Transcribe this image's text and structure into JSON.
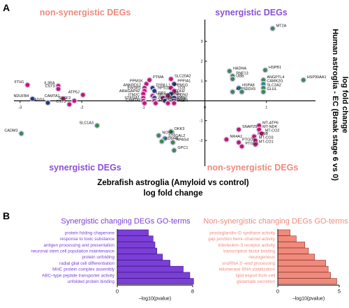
{
  "panel_a": {
    "letter": "A",
    "quadrant_labels": {
      "top_left": "non-synergistic DEGs",
      "top_right": "synergistic DEGs",
      "bottom_left": "synergistic DEGs",
      "bottom_right": "non-synergistic DEGs"
    },
    "colors": {
      "synergistic": "#8a4fd6",
      "non_synergistic": "#ee8a7c"
    }
  },
  "panel_b": {
    "letter": "B",
    "left": {
      "title": "Synergistic changing DEGs GO-terms",
      "xlabel": "–log10(pvalue)",
      "color": "#7b3fd8"
    },
    "right": {
      "title": "Non-synergistic changing DEGs GO-terms",
      "xlabel": "–log10(pvalue)",
      "color": "#f08a7c"
    }
  },
  "chart_data": [
    {
      "type": "scatter",
      "title": "",
      "xlabel": "Zebrafish astroglia (Amyloid vs control)\nlog fold change",
      "ylabel": "Human astroglia - EC (Braak stage 6 vs 0)\nlog fold change",
      "xlim": [
        -3.1,
        2.0
      ],
      "ylim": [
        -3.3,
        4.1
      ],
      "xticks": [
        -3,
        -2,
        -1,
        0,
        1
      ],
      "yticks": [
        -2,
        -1,
        1,
        2,
        3
      ],
      "grid": false,
      "marker_colors": {
        "magenta": "#c2186b",
        "green": "#3c8a4e",
        "teal": "#2b8c8a",
        "navy": "#1f3f73"
      },
      "points": [
        {
          "label": "FTH1",
          "x": -2.88,
          "y": 0.8,
          "color": "magenta"
        },
        {
          "label": "IL3RA",
          "x": -2.38,
          "y": 0.75,
          "color": "magenta"
        },
        {
          "label": "CST3",
          "x": -2.38,
          "y": 0.6,
          "color": "magenta"
        },
        {
          "label": "ATP5J",
          "x": -1.98,
          "y": 0.3,
          "color": "magenta"
        },
        {
          "label": "NDUFB4",
          "x": -2.8,
          "y": 0.1,
          "color": "navy"
        },
        {
          "label": "CAMTA1",
          "x": -2.3,
          "y": 0.1,
          "color": "magenta"
        },
        {
          "label": "SRSF2",
          "x": -2.12,
          "y": 0.0,
          "color": "magenta"
        },
        {
          "label": "ADD3",
          "x": -2.55,
          "y": -0.1,
          "color": "navy"
        },
        {
          "label": "CST3",
          "x": -2.2,
          "y": -0.18,
          "color": "magenta"
        },
        {
          "label": "SLC1A3",
          "x": -1.75,
          "y": -1.25,
          "color": "green"
        },
        {
          "label": "CADM3",
          "x": -2.98,
          "y": -1.65,
          "color": "green"
        },
        {
          "label": "PTMA",
          "x": -0.9,
          "y": 1.05,
          "color": "magenta"
        },
        {
          "label": "SLC20A2",
          "x": -0.55,
          "y": 1.1,
          "color": "magenta"
        },
        {
          "label": "PPM1K",
          "x": -0.95,
          "y": 0.85,
          "color": "magenta"
        },
        {
          "label": "PPFIA1",
          "x": -0.5,
          "y": 0.85,
          "color": "navy"
        },
        {
          "label": "ANKRD12",
          "x": -0.98,
          "y": 0.65,
          "color": "magenta"
        },
        {
          "label": "DYNLL1",
          "x": -0.85,
          "y": 0.65,
          "color": "navy"
        },
        {
          "label": "PPM1G",
          "x": -0.55,
          "y": 0.65,
          "color": "magenta"
        },
        {
          "label": "EWSR1",
          "x": -0.98,
          "y": 0.5,
          "color": "magenta"
        },
        {
          "label": "RPS10",
          "x": -0.82,
          "y": 0.5,
          "color": "navy"
        },
        {
          "label": "TOX",
          "x": -0.5,
          "y": 0.5,
          "color": "magenta"
        },
        {
          "label": "ARHGAP42",
          "x": -1.0,
          "y": 0.35,
          "color": "magenta"
        },
        {
          "label": "CDH2",
          "x": -0.55,
          "y": 0.35,
          "color": "navy"
        },
        {
          "label": "LRP2",
          "x": -0.85,
          "y": 0.25,
          "color": "magenta"
        },
        {
          "label": "AK5",
          "x": -0.6,
          "y": 0.25,
          "color": "magenta"
        },
        {
          "label": "ITM2C",
          "x": -1.0,
          "y": 0.15,
          "color": "magenta"
        },
        {
          "label": "NR2F1",
          "x": -0.82,
          "y": 0.15,
          "color": "navy"
        },
        {
          "label": "POU3F2",
          "x": -0.68,
          "y": 0.15,
          "color": "magenta"
        },
        {
          "label": "PON2",
          "x": -0.5,
          "y": 0.15,
          "color": "navy"
        },
        {
          "label": "ST8SIA1",
          "x": -1.0,
          "y": 0.0,
          "color": "magenta"
        },
        {
          "label": "ZNF638",
          "x": -0.82,
          "y": 0.0,
          "color": "magenta"
        },
        {
          "label": "HSP90B1",
          "x": -0.65,
          "y": 0.0,
          "color": "navy"
        },
        {
          "label": "CCNI",
          "x": -0.5,
          "y": 0.0,
          "color": "magenta"
        },
        {
          "label": "CAMTA1",
          "x": -0.98,
          "y": -0.12,
          "color": "magenta"
        },
        {
          "label": "HMGN3",
          "x": -0.8,
          "y": -0.12,
          "color": "magenta"
        },
        {
          "label": "GPM6B",
          "x": -0.6,
          "y": -0.12,
          "color": "magenta"
        },
        {
          "label": "PARN",
          "x": -0.5,
          "y": -0.12,
          "color": "magenta"
        },
        {
          "label": "MT2A",
          "x": 1.1,
          "y": 3.65,
          "color": "green"
        },
        {
          "label": "HADHA",
          "x": 0.4,
          "y": 1.5,
          "color": "green"
        },
        {
          "label": "HSPB1",
          "x": 0.98,
          "y": 1.55,
          "color": "green"
        },
        {
          "label": "RNF13",
          "x": 0.45,
          "y": 1.25,
          "color": "green"
        },
        {
          "label": "UBB",
          "x": 0.45,
          "y": 1.1,
          "color": "green"
        },
        {
          "label": "ANGPTL4",
          "x": 0.95,
          "y": 1.05,
          "color": "green"
        },
        {
          "label": "HSP90AA1",
          "x": 1.6,
          "y": 1.05,
          "color": "green"
        },
        {
          "label": "CAMK2G",
          "x": 0.95,
          "y": 0.85,
          "color": "teal"
        },
        {
          "label": "HSPA8",
          "x": 0.55,
          "y": 0.65,
          "color": "teal"
        },
        {
          "label": "SLC3A2",
          "x": 0.95,
          "y": 0.65,
          "color": "green"
        },
        {
          "label": "ATP5L",
          "x": 0.45,
          "y": 0.45,
          "color": "green"
        },
        {
          "label": "DDX5",
          "x": 0.6,
          "y": 0.45,
          "color": "green"
        },
        {
          "label": "GLUL",
          "x": 0.95,
          "y": 0.45,
          "color": "green"
        },
        {
          "label": "DKK3",
          "x": -0.55,
          "y": -1.55,
          "color": "green"
        },
        {
          "label": "NOVA1",
          "x": -0.75,
          "y": -1.75,
          "color": "green"
        },
        {
          "label": "ST6GAL2",
          "x": -0.65,
          "y": -1.9,
          "color": "teal"
        },
        {
          "label": "KDM4B",
          "x": -0.7,
          "y": -2.05,
          "color": "green"
        },
        {
          "label": "NPAS4",
          "x": -0.52,
          "y": -2.1,
          "color": "green"
        },
        {
          "label": "GPC1",
          "x": -0.5,
          "y": -2.5,
          "color": "green"
        },
        {
          "label": "MT-ATP6",
          "x": 0.88,
          "y": -1.25,
          "color": "magenta"
        },
        {
          "label": "SNAP25",
          "x": 0.55,
          "y": -1.45,
          "color": "magenta"
        },
        {
          "label": "MT-ND4",
          "x": 0.88,
          "y": -1.45,
          "color": "magenta"
        },
        {
          "label": "MT-CO2",
          "x": 0.92,
          "y": -1.65,
          "color": "magenta"
        },
        {
          "label": "FOSB",
          "x": 0.8,
          "y": -1.8,
          "color": "magenta"
        },
        {
          "label": "NR4A1",
          "x": 0.35,
          "y": -1.95,
          "color": "magenta"
        },
        {
          "label": "MT-CO3",
          "x": 0.82,
          "y": -2.0,
          "color": "magenta"
        },
        {
          "label": "PTGDS",
          "x": 0.55,
          "y": -2.1,
          "color": "magenta"
        },
        {
          "label": "MT-CO1",
          "x": 0.82,
          "y": -2.2,
          "color": "magenta"
        },
        {
          "label": "PTGDS",
          "x": 0.6,
          "y": -2.3,
          "color": "magenta"
        }
      ]
    },
    {
      "type": "bar",
      "orientation": "horizontal",
      "title": "Synergistic changing DEGs GO-terms",
      "xlabel": "–log10(pvalue)",
      "xlim": [
        0,
        8
      ],
      "xticks": [
        0,
        8
      ],
      "categories": [
        "protein folding chaperone",
        "response to toxic substance",
        "antigen processing and presentation",
        "neuronal stem cell population maintenance",
        "protein unfolding",
        "radial glial cell differentiation",
        "MHC protein complex assembly",
        "ABC–type peptide transporter activity",
        "unfolded protein binding"
      ],
      "values": [
        3.3,
        3.8,
        4.0,
        4.2,
        4.8,
        5.6,
        7.0,
        7.7,
        8.1
      ]
    },
    {
      "type": "bar",
      "orientation": "horizontal",
      "title": "Non-synergistic changing DEGs GO-terms",
      "xlabel": "–log10(pvalue)",
      "xlim": [
        0,
        5
      ],
      "xticks": [
        0,
        5
      ],
      "categories": [
        "prostaglandin–D synthase activity",
        "gap junction hemi–channel activity",
        "interleukin–3 receptor activity",
        "transcription factor binding",
        "neurogenesis",
        "snoRNA 3’–end processing",
        "telomerase RNA stabilization",
        "lipid export from cell",
        "glutamate secretion"
      ],
      "values": [
        1.0,
        1.5,
        2.2,
        2.5,
        3.0,
        3.9,
        4.1,
        4.3,
        4.8
      ]
    }
  ]
}
